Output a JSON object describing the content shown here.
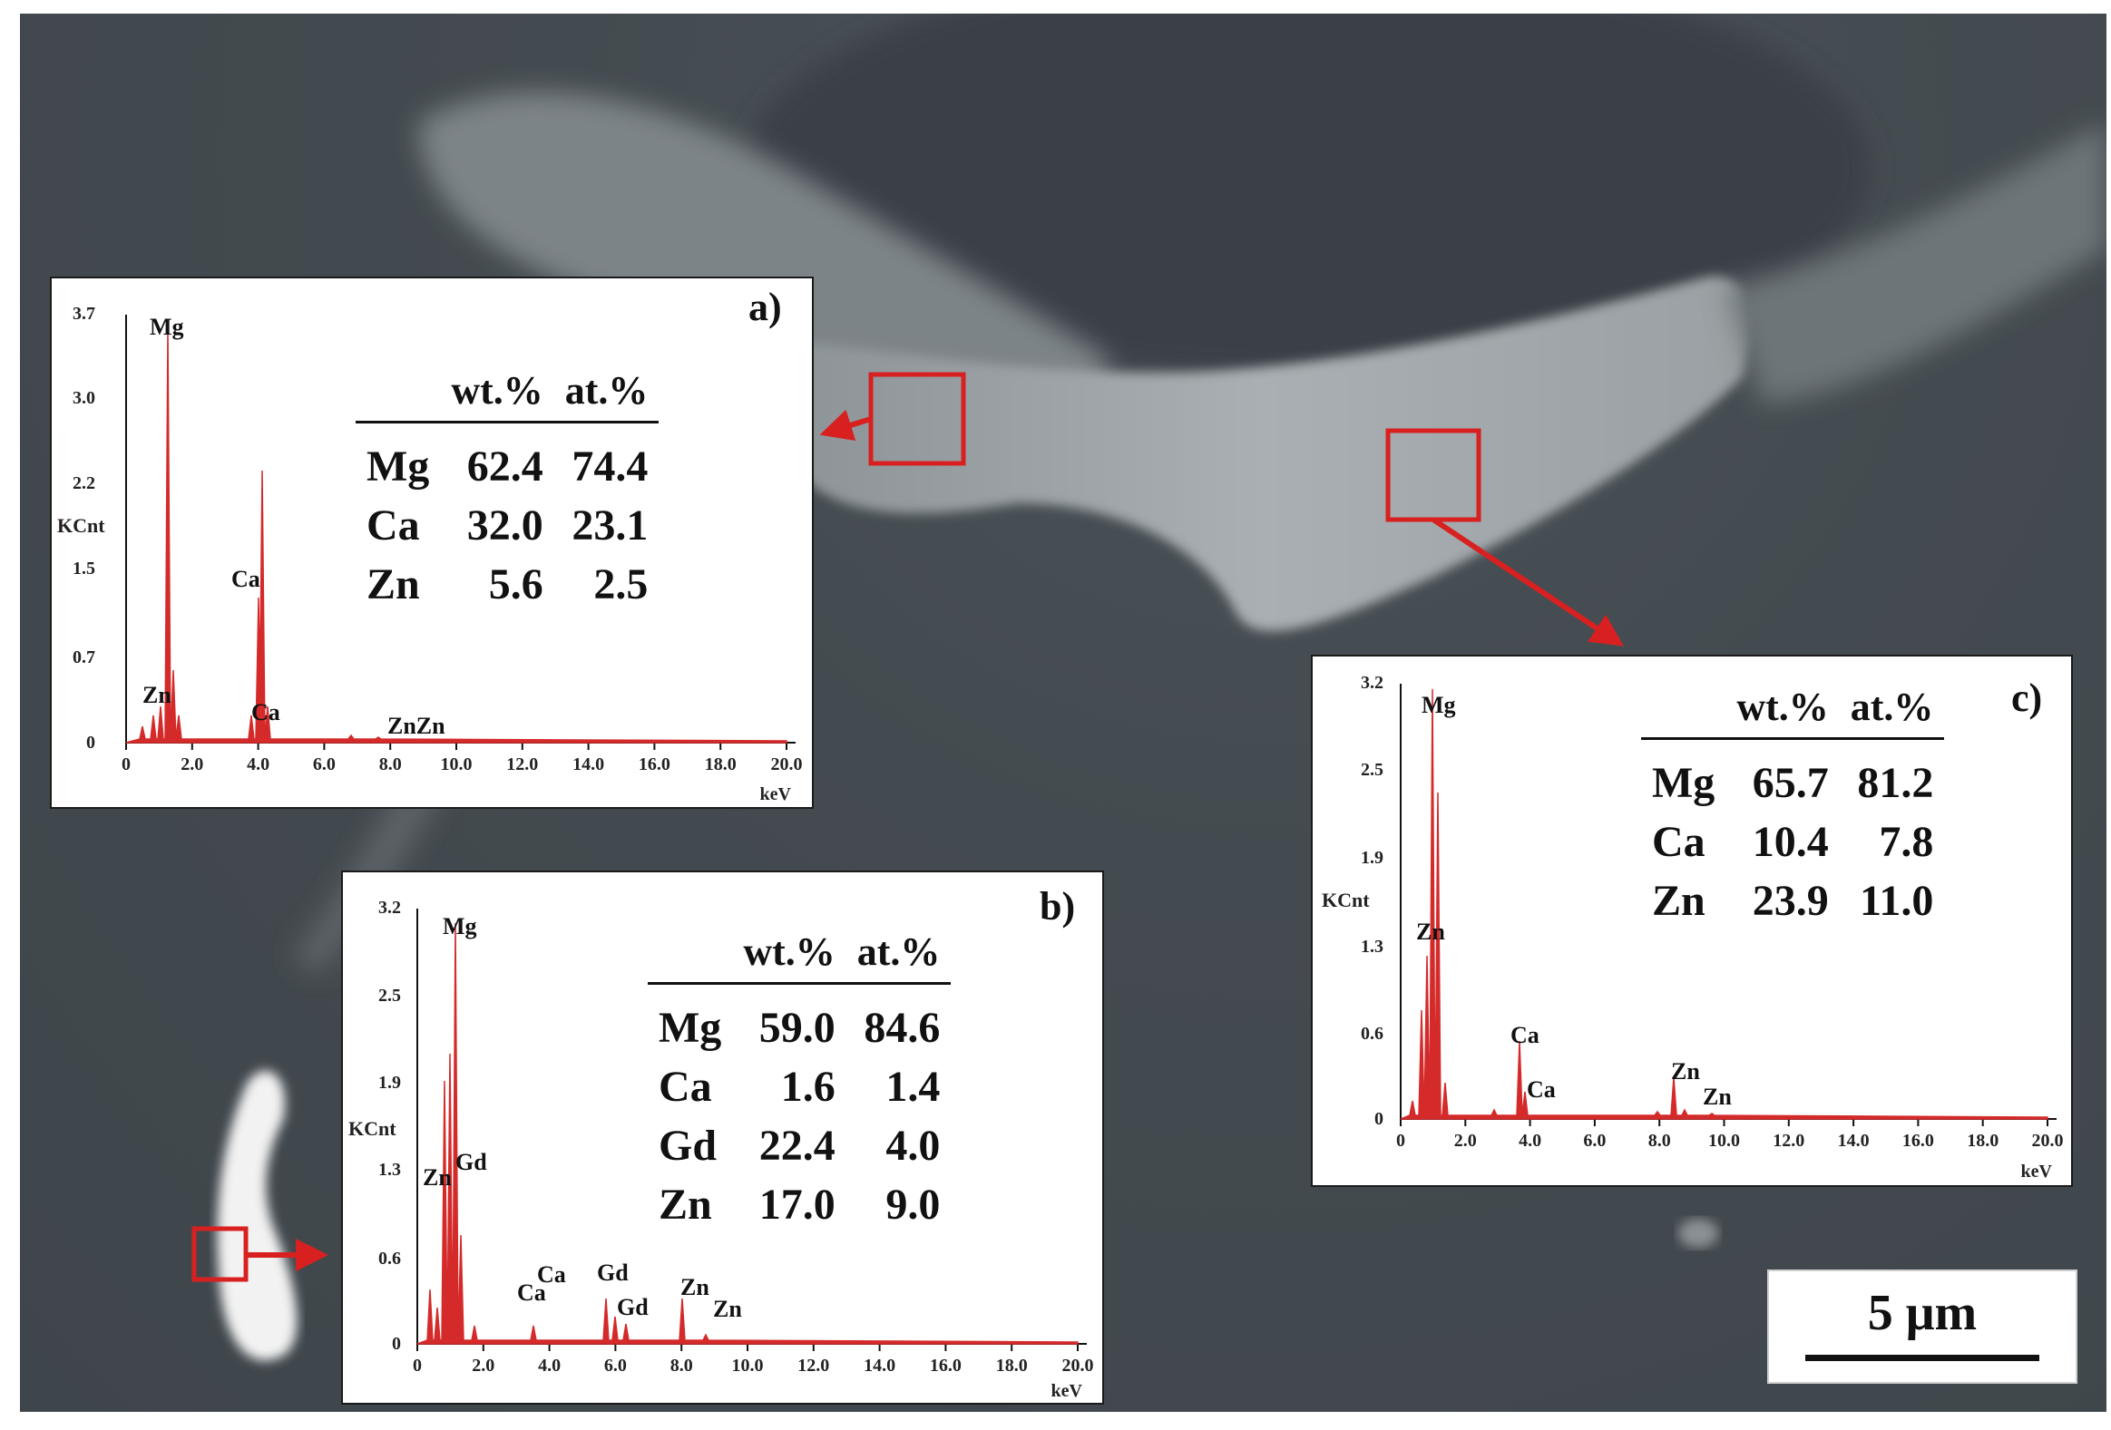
{
  "colors": {
    "marker": "#d82020",
    "spectrum": "#d42a2a"
  },
  "scale_bar": {
    "label": "5 μm"
  },
  "insets": [
    {
      "id": "a",
      "label": "a)",
      "y_ticks": [
        "3.7",
        "3.0",
        "2.2",
        "1.5",
        "0.7",
        "0"
      ],
      "y_unit": "KCnt",
      "x_ticks": [
        "0",
        "2.0",
        "4.0",
        "6.0",
        "8.0",
        "10.0",
        "12.0",
        "14.0",
        "16.0",
        "18.0",
        "20.0"
      ],
      "x_unit": "keV",
      "peak_labels": [
        "Mg",
        "Ca",
        "Zn",
        "Ca",
        "ZnZn"
      ],
      "table": {
        "headers": [
          "wt.%",
          "at.%"
        ],
        "rows": [
          {
            "el": "Mg",
            "wt": "62.4",
            "at": "74.4"
          },
          {
            "el": "Ca",
            "wt": "32.0",
            "at": "23.1"
          },
          {
            "el": "Zn",
            "wt": "5.6",
            "at": "2.5"
          }
        ]
      }
    },
    {
      "id": "b",
      "label": "b)",
      "y_ticks": [
        "3.2",
        "2.5",
        "1.9",
        "1.3",
        "0.6",
        "0"
      ],
      "y_unit": "KCnt",
      "x_ticks": [
        "0",
        "2.0",
        "4.0",
        "6.0",
        "8.0",
        "10.0",
        "12.0",
        "14.0",
        "16.0",
        "18.0",
        "20.0"
      ],
      "x_unit": "keV",
      "peak_labels": [
        "Mg",
        "Zn",
        "Gd",
        "Ca",
        "Ca",
        "Gd",
        "Gd",
        "Zn",
        "Zn"
      ],
      "table": {
        "headers": [
          "wt.%",
          "at.%"
        ],
        "rows": [
          {
            "el": "Mg",
            "wt": "59.0",
            "at": "84.6"
          },
          {
            "el": "Ca",
            "wt": "1.6",
            "at": "1.4"
          },
          {
            "el": "Gd",
            "wt": "22.4",
            "at": "4.0"
          },
          {
            "el": "Zn",
            "wt": "17.0",
            "at": "9.0"
          }
        ]
      }
    },
    {
      "id": "c",
      "label": "c)",
      "y_ticks": [
        "3.2",
        "2.5",
        "1.9",
        "1.3",
        "0.6",
        "0"
      ],
      "y_unit": "KCnt",
      "x_ticks": [
        "0",
        "2.0",
        "4.0",
        "6.0",
        "8.0",
        "10.0",
        "12.0",
        "14.0",
        "16.0",
        "18.0",
        "20.0"
      ],
      "x_unit": "keV",
      "peak_labels": [
        "Mg",
        "Zn",
        "Ca",
        "Ca",
        "Zn",
        "Zn"
      ],
      "table": {
        "headers": [
          "wt.%",
          "at.%"
        ],
        "rows": [
          {
            "el": "Mg",
            "wt": "65.7",
            "at": "81.2"
          },
          {
            "el": "Ca",
            "wt": "10.4",
            "at": "7.8"
          },
          {
            "el": "Zn",
            "wt": "23.9",
            "at": "11.0"
          }
        ]
      }
    }
  ]
}
